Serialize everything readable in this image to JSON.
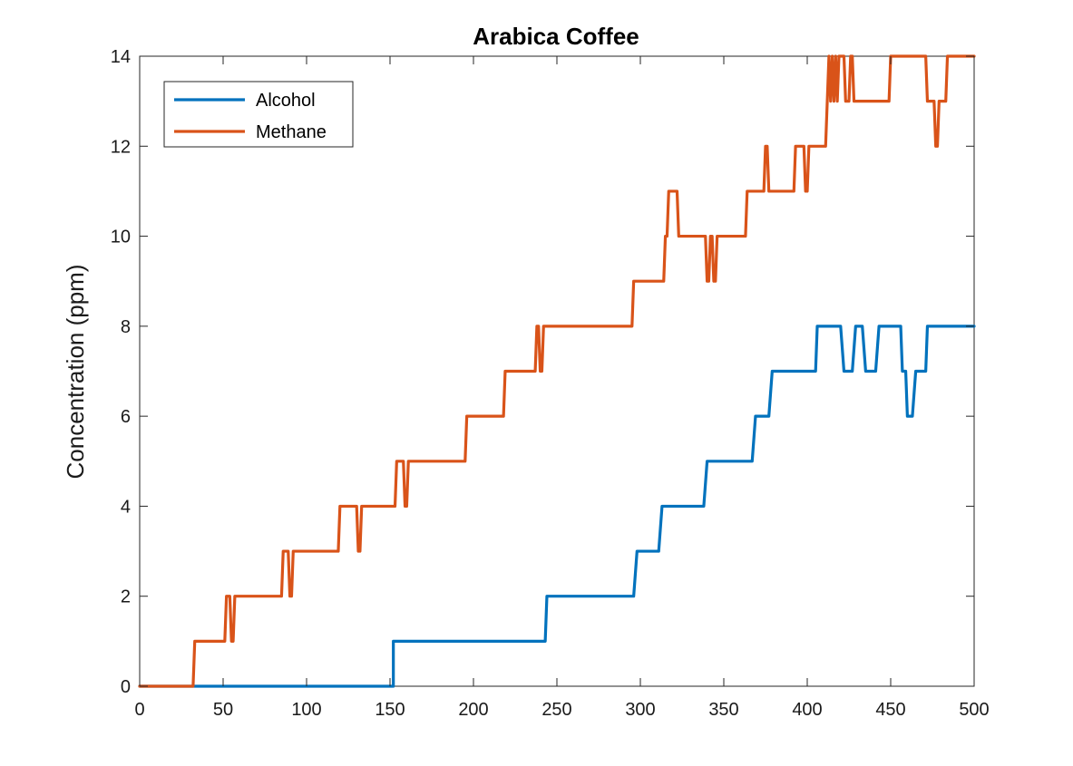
{
  "chart_data": {
    "type": "line",
    "title": "Arabica Coffee",
    "xlabel": "",
    "ylabel": "Concentration (ppm)",
    "xlim": [
      0,
      500
    ],
    "ylim": [
      0,
      14
    ],
    "xticks": [
      0,
      50,
      100,
      150,
      200,
      250,
      300,
      350,
      400,
      450,
      500
    ],
    "yticks": [
      0,
      2,
      4,
      6,
      8,
      10,
      12,
      14
    ],
    "grid": false,
    "legend_position": "top-left",
    "series": [
      {
        "name": "Alcohol",
        "color": "#0072BD",
        "x": [
          0,
          152,
          152,
          243,
          244,
          296,
          298,
          311,
          313,
          338,
          340,
          367,
          369,
          377,
          379,
          405,
          406,
          420,
          422,
          427,
          429,
          433,
          435,
          441,
          443,
          456,
          457,
          459,
          460,
          463,
          465,
          471,
          472,
          500
        ],
        "y": [
          0,
          0,
          1,
          1,
          2,
          2,
          3,
          3,
          4,
          4,
          5,
          5,
          6,
          6,
          7,
          7,
          8,
          8,
          7,
          7,
          8,
          8,
          7,
          7,
          8,
          8,
          7,
          7,
          6,
          6,
          7,
          7,
          8,
          8
        ]
      },
      {
        "name": "Methane",
        "color": "#D95319",
        "x": [
          0,
          32,
          33,
          51,
          52,
          54,
          55,
          56,
          57,
          85,
          86,
          89,
          90,
          91,
          92,
          119,
          120,
          130,
          131,
          132,
          133,
          153,
          154,
          158,
          159,
          160,
          161,
          195,
          196,
          218,
          219,
          237,
          238,
          239,
          240,
          241,
          242,
          295,
          296,
          314,
          315,
          316,
          317,
          318,
          319,
          322,
          323,
          339,
          340,
          341,
          342,
          343,
          344,
          345,
          346,
          363,
          364,
          374,
          375,
          376,
          377,
          378,
          379,
          392,
          393,
          398,
          399,
          400,
          401,
          402,
          403,
          411,
          412,
          413,
          414,
          415,
          416,
          417,
          418,
          419,
          420,
          422,
          423,
          425,
          426,
          427,
          428,
          429,
          430,
          449,
          450,
          471,
          472,
          476,
          477,
          478,
          479,
          481,
          482,
          483,
          484,
          486,
          487,
          488,
          489,
          500
        ],
        "y": [
          0,
          0,
          1,
          1,
          2,
          2,
          1,
          1,
          2,
          2,
          3,
          3,
          2,
          2,
          3,
          3,
          4,
          4,
          3,
          3,
          4,
          4,
          5,
          5,
          4,
          4,
          5,
          5,
          6,
          6,
          7,
          7,
          8,
          8,
          7,
          7,
          8,
          8,
          9,
          9,
          10,
          10,
          11,
          11,
          11,
          11,
          10,
          10,
          9,
          9,
          10,
          10,
          9,
          9,
          10,
          10,
          11,
          11,
          12,
          12,
          11,
          11,
          11,
          11,
          12,
          12,
          11,
          11,
          12,
          12,
          12,
          12,
          13,
          14,
          13,
          14,
          13,
          14,
          13,
          14,
          14,
          14,
          13,
          13,
          14,
          14,
          13,
          13,
          13,
          13,
          14,
          14,
          13,
          13,
          12,
          12,
          13,
          13,
          13,
          13,
          14,
          14,
          14,
          14,
          14,
          14
        ]
      }
    ]
  }
}
